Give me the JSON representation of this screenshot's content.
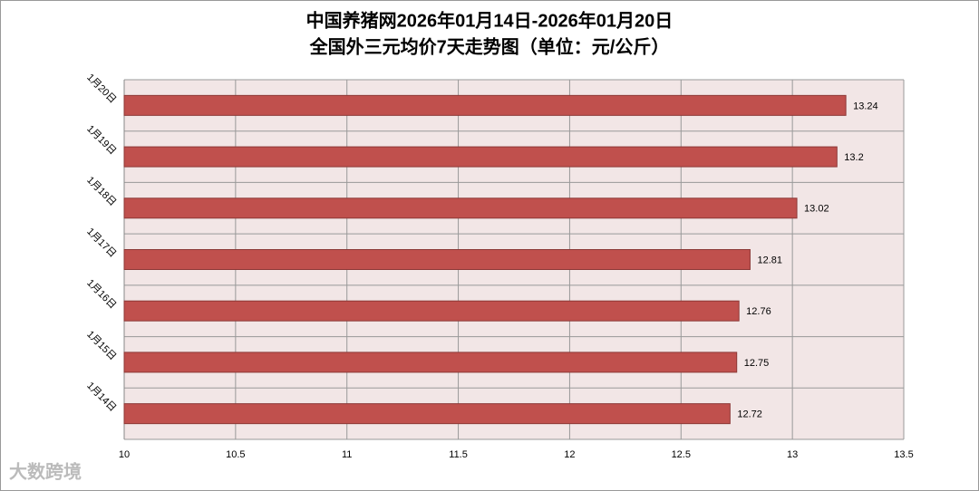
{
  "chart_data": {
    "type": "barh",
    "title": "中国养猪网2026年01月14日-2026年01月20日",
    "subtitle": "全国外三元均价7天走势图（单位：元/公斤）",
    "categories": [
      "1月20日",
      "1月19日",
      "1月18日",
      "1月17日",
      "1月16日",
      "1月15日",
      "1月14日"
    ],
    "values": [
      13.24,
      13.2,
      13.02,
      12.81,
      12.76,
      12.75,
      12.72
    ],
    "color": "#c0504d",
    "xlim": [
      10,
      13.5
    ],
    "xticks": [
      10,
      10.5,
      11,
      11.5,
      12,
      12.5,
      13,
      13.5
    ],
    "grid": true
  },
  "watermark": "大数跨境"
}
